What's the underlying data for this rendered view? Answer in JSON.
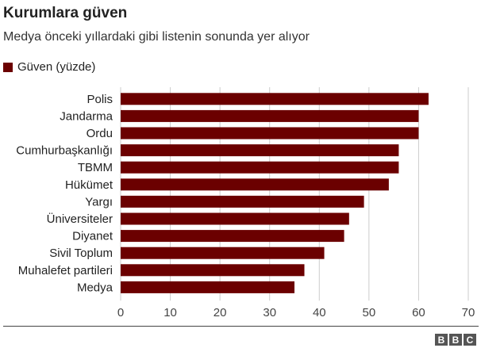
{
  "header": {
    "title": "Kurumlara güven",
    "subtitle": "Medya önceki yıllardaki gibi listenin sonunda yer alıyor"
  },
  "colors": {
    "bar": "#6b0000",
    "grid": "#cccccc",
    "axis_text": "#444444"
  },
  "brand": {
    "letters": [
      "B",
      "B",
      "C"
    ]
  },
  "chart_data": {
    "type": "bar",
    "orientation": "horizontal",
    "categories": [
      "Polis",
      "Jandarma",
      "Ordu",
      "Cumhurbaşkanlığı",
      "TBMM",
      "Hükümet",
      "Yargı",
      "Üniversiteler",
      "Diyanet",
      "Sivil Toplum",
      "Muhalefet partileri",
      "Medya"
    ],
    "series": [
      {
        "name": "Güven (yüzde)",
        "values": [
          62,
          60,
          60,
          56,
          56,
          54,
          49,
          46,
          45,
          41,
          37,
          35
        ]
      }
    ],
    "xlim": [
      0,
      70
    ],
    "xticks": [
      0,
      10,
      20,
      30,
      40,
      50,
      60,
      70
    ],
    "grid": true,
    "legend": "top-left"
  }
}
